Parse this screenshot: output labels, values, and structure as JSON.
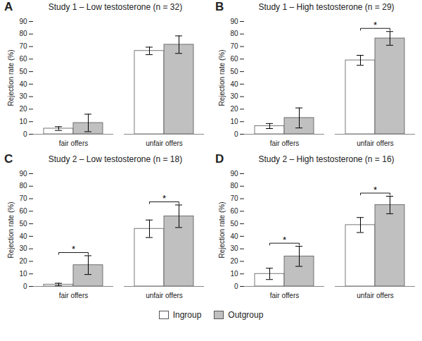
{
  "chart_data": [
    {
      "type": "bar",
      "title": "Study 1 – Low testosterone (n = 32)",
      "categories": [
        "fair offers",
        "unfair offers"
      ],
      "series": [
        {
          "name": "Ingroup",
          "color": "#ffffff",
          "values": [
            4.5,
            66.5
          ],
          "errors": [
            1.5,
            3.0
          ]
        },
        {
          "name": "Outgroup",
          "color": "#c0c0c0",
          "values": [
            9.0,
            71.5
          ],
          "errors": [
            7.0,
            7.0
          ]
        }
      ],
      "y_label": "Rejection rate (%)",
      "ylim": [
        0,
        90
      ],
      "yticks": [
        0,
        10,
        20,
        30,
        40,
        50,
        60,
        70,
        80,
        90
      ],
      "grid": false,
      "legend": "bottom",
      "annotations": [
        {
          "text": "A"
        }
      ]
    },
    {
      "type": "bar",
      "title": "Study 1 – High testosterone (n = 29)",
      "categories": [
        "fair offers",
        "unfair offers"
      ],
      "series": [
        {
          "name": "Ingroup",
          "color": "#ffffff",
          "values": [
            6.5,
            59.0
          ],
          "errors": [
            2.0,
            4.0
          ]
        },
        {
          "name": "Outgroup",
          "color": "#c0c0c0",
          "values": [
            13.0,
            76.5
          ],
          "errors": [
            8.0,
            5.5
          ]
        }
      ],
      "y_label": "Rejection rate (%)",
      "ylim": [
        0,
        90
      ],
      "yticks": [
        0,
        10,
        20,
        30,
        40,
        50,
        60,
        70,
        80,
        90
      ],
      "grid": false,
      "legend": "bottom",
      "annotations": [
        {
          "text": "B"
        },
        {
          "text": "*",
          "category": "unfair offers"
        }
      ]
    },
    {
      "type": "bar",
      "title": "Study 2 – Low testosterone (n = 18)",
      "categories": [
        "fair offers",
        "unfair offers"
      ],
      "series": [
        {
          "name": "Ingroup",
          "color": "#ffffff",
          "values": [
            1.5,
            46.0
          ],
          "errors": [
            1.0,
            7.0
          ]
        },
        {
          "name": "Outgroup",
          "color": "#c0c0c0",
          "values": [
            17.0,
            56.0
          ],
          "errors": [
            7.5,
            9.0
          ]
        }
      ],
      "y_label": "Rejection rate (%)",
      "ylim": [
        0,
        90
      ],
      "yticks": [
        0,
        10,
        20,
        30,
        40,
        50,
        60,
        70,
        80,
        90
      ],
      "grid": false,
      "legend": "bottom",
      "annotations": [
        {
          "text": "C"
        },
        {
          "text": "*",
          "category": "fair offers"
        },
        {
          "text": "*",
          "category": "unfair offers"
        }
      ]
    },
    {
      "type": "bar",
      "title": "Study 2 – High testosterone (n = 16)",
      "categories": [
        "fair offers",
        "unfair offers"
      ],
      "series": [
        {
          "name": "Ingroup",
          "color": "#ffffff",
          "values": [
            10.0,
            49.0
          ],
          "errors": [
            4.5,
            6.0
          ]
        },
        {
          "name": "Outgroup",
          "color": "#c0c0c0",
          "values": [
            24.0,
            65.0
          ],
          "errors": [
            8.0,
            7.0
          ]
        }
      ],
      "y_label": "Rejection rate (%)",
      "ylim": [
        0,
        90
      ],
      "yticks": [
        0,
        10,
        20,
        30,
        40,
        50,
        60,
        70,
        80,
        90
      ],
      "grid": false,
      "legend": "bottom",
      "annotations": [
        {
          "text": "D"
        },
        {
          "text": "*",
          "category": "fair offers"
        },
        {
          "text": "*",
          "category": "unfair offers"
        }
      ]
    }
  ]
}
